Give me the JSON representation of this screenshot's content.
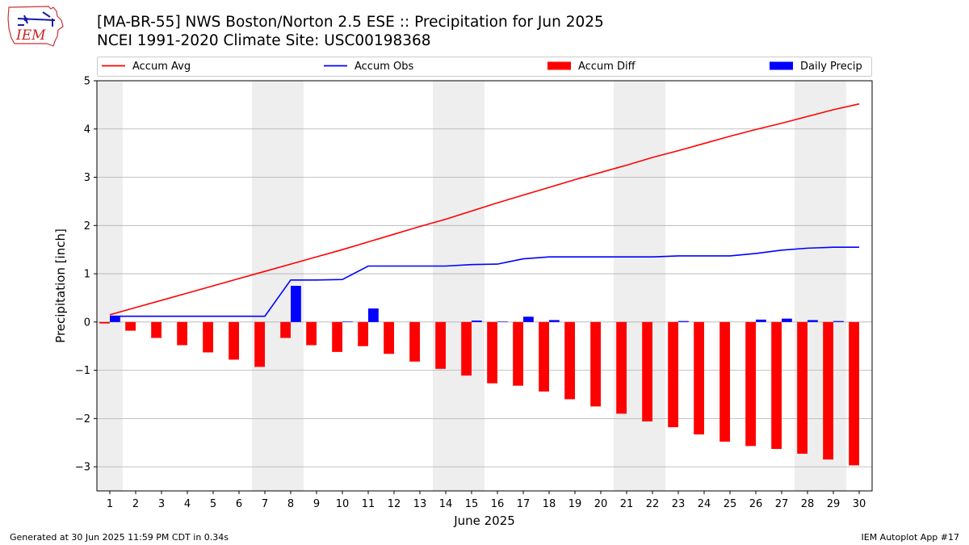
{
  "header": {
    "title_line1": "[MA-BR-55] NWS Boston/Norton 2.5 ESE :: Precipitation for Jun 2025",
    "title_line2": "NCEI 1991-2020 Climate Site: USC00198368",
    "logo_text": "IEM"
  },
  "footer": {
    "generated": "Generated at 30 Jun 2025 11:59 PM CDT in 0.34s",
    "app": "IEM Autoplot App #17"
  },
  "colors": {
    "accum_avg": "#ff0000",
    "accum_obs": "#0000ff",
    "accum_diff": "#ff0000",
    "daily_precip": "#0000ff",
    "weekend_shade": "#eeeeee",
    "grid": "#b0b0b0"
  },
  "chart_data": {
    "type": "bar",
    "xlabel": "June 2025",
    "ylabel": "Precipitation [inch]",
    "ylim": [
      -3.5,
      5
    ],
    "yticks": [
      -3,
      -2,
      -1,
      0,
      1,
      2,
      3,
      4,
      5
    ],
    "ytick_labels": [
      "−3",
      "−2",
      "−1",
      "0",
      "1",
      "2",
      "3",
      "4",
      "5"
    ],
    "grid": "horizontal",
    "legend": "top",
    "categories": [
      "1",
      "2",
      "3",
      "4",
      "5",
      "6",
      "7",
      "8",
      "9",
      "10",
      "11",
      "12",
      "13",
      "14",
      "15",
      "16",
      "17",
      "18",
      "19",
      "20",
      "21",
      "22",
      "23",
      "24",
      "25",
      "26",
      "27",
      "28",
      "29",
      "30"
    ],
    "weekend_days": [
      1,
      7,
      8,
      14,
      15,
      21,
      22,
      28,
      29
    ],
    "series": [
      {
        "name": "Accum Avg",
        "type": "line",
        "values": [
          0.15,
          0.3,
          0.45,
          0.6,
          0.75,
          0.9,
          1.05,
          1.2,
          1.35,
          1.5,
          1.66,
          1.82,
          1.98,
          2.13,
          2.3,
          2.47,
          2.63,
          2.79,
          2.95,
          3.1,
          3.25,
          3.41,
          3.55,
          3.7,
          3.85,
          3.99,
          4.12,
          4.26,
          4.4,
          4.52
        ]
      },
      {
        "name": "Accum Obs",
        "type": "line",
        "values": [
          0.12,
          0.12,
          0.12,
          0.12,
          0.12,
          0.12,
          0.12,
          0.87,
          0.87,
          0.88,
          1.16,
          1.16,
          1.16,
          1.16,
          1.19,
          1.2,
          1.31,
          1.35,
          1.35,
          1.35,
          1.35,
          1.35,
          1.37,
          1.37,
          1.37,
          1.42,
          1.49,
          1.53,
          1.55,
          1.55
        ]
      },
      {
        "name": "Accum Diff",
        "type": "bar",
        "values": [
          -0.03,
          -0.18,
          -0.33,
          -0.48,
          -0.63,
          -0.78,
          -0.93,
          -0.33,
          -0.48,
          -0.62,
          -0.5,
          -0.66,
          -0.82,
          -0.97,
          -1.11,
          -1.27,
          -1.32,
          -1.44,
          -1.6,
          -1.75,
          -1.9,
          -2.06,
          -2.18,
          -2.33,
          -2.48,
          -2.57,
          -2.63,
          -2.73,
          -2.85,
          -2.97
        ]
      },
      {
        "name": "Daily Precip",
        "type": "bar",
        "values": [
          0.12,
          0,
          0,
          0,
          0,
          0,
          0,
          0.75,
          0,
          0.01,
          0.28,
          0,
          0,
          0,
          0.03,
          0.01,
          0.11,
          0.04,
          0,
          0,
          0,
          0,
          0.02,
          0,
          0,
          0.05,
          0.07,
          0.04,
          0.02,
          0
        ]
      }
    ]
  }
}
